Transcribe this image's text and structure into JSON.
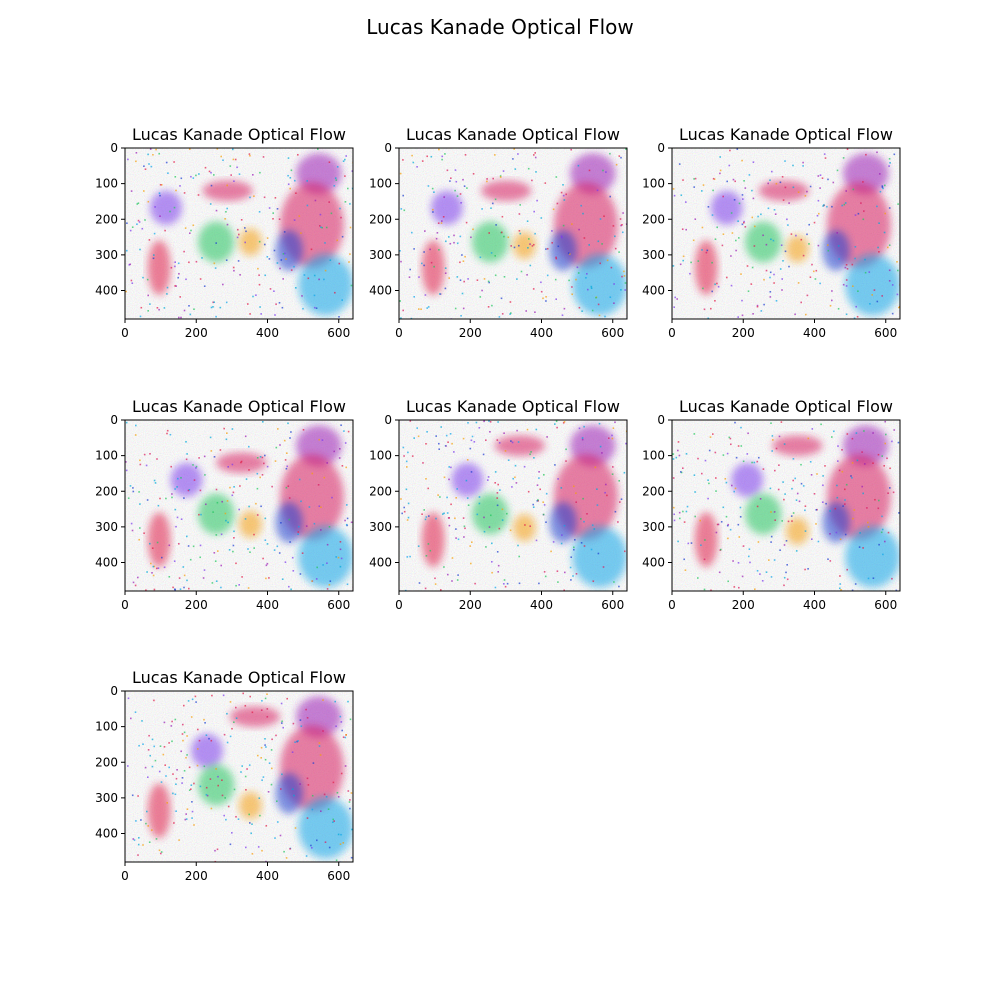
{
  "figure": {
    "title": "Lucas Kanade Optical Flow"
  },
  "chart_data": [
    {
      "type": "heatmap",
      "title": "Lucas Kanade Optical Flow",
      "xlim": [
        0,
        640
      ],
      "ylim": [
        480,
        0
      ],
      "xticks": [
        0,
        200,
        400,
        600
      ],
      "yticks": [
        0,
        100,
        200,
        300,
        400
      ],
      "xtick_labels": [
        "0",
        "200",
        "400",
        "600"
      ],
      "ytick_labels": [
        "0",
        "100",
        "200",
        "300",
        "400"
      ],
      "grid": false
    },
    {
      "type": "heatmap",
      "title": "Lucas Kanade Optical Flow",
      "xlim": [
        0,
        640
      ],
      "ylim": [
        480,
        0
      ],
      "xticks": [
        0,
        200,
        400,
        600
      ],
      "yticks": [
        0,
        100,
        200,
        300,
        400
      ],
      "xtick_labels": [
        "0",
        "200",
        "400",
        "600"
      ],
      "ytick_labels": [
        "0",
        "100",
        "200",
        "300",
        "400"
      ],
      "grid": false
    },
    {
      "type": "heatmap",
      "title": "Lucas Kanade Optical Flow",
      "xlim": [
        0,
        640
      ],
      "ylim": [
        480,
        0
      ],
      "xticks": [
        0,
        200,
        400,
        600
      ],
      "yticks": [
        0,
        100,
        200,
        300,
        400
      ],
      "xtick_labels": [
        "0",
        "200",
        "400",
        "600"
      ],
      "ytick_labels": [
        "0",
        "100",
        "200",
        "300",
        "400"
      ],
      "grid": false
    },
    {
      "type": "heatmap",
      "title": "Lucas Kanade Optical Flow",
      "xlim": [
        0,
        640
      ],
      "ylim": [
        480,
        0
      ],
      "xticks": [
        0,
        200,
        400,
        600
      ],
      "yticks": [
        0,
        100,
        200,
        300,
        400
      ],
      "xtick_labels": [
        "0",
        "200",
        "400",
        "600"
      ],
      "ytick_labels": [
        "0",
        "100",
        "200",
        "300",
        "400"
      ],
      "grid": false
    },
    {
      "type": "heatmap",
      "title": "Lucas Kanade Optical Flow",
      "xlim": [
        0,
        640
      ],
      "ylim": [
        480,
        0
      ],
      "xticks": [
        0,
        200,
        400,
        600
      ],
      "yticks": [
        0,
        100,
        200,
        300,
        400
      ],
      "xtick_labels": [
        "0",
        "200",
        "400",
        "600"
      ],
      "ytick_labels": [
        "0",
        "100",
        "200",
        "300",
        "400"
      ],
      "grid": false
    },
    {
      "type": "heatmap",
      "title": "Lucas Kanade Optical Flow",
      "xlim": [
        0,
        640
      ],
      "ylim": [
        480,
        0
      ],
      "xticks": [
        0,
        200,
        400,
        600
      ],
      "yticks": [
        0,
        100,
        200,
        300,
        400
      ],
      "xtick_labels": [
        "0",
        "200",
        "400",
        "600"
      ],
      "ytick_labels": [
        "0",
        "100",
        "200",
        "300",
        "400"
      ],
      "grid": false
    },
    {
      "type": "heatmap",
      "title": "Lucas Kanade Optical Flow",
      "xlim": [
        0,
        640
      ],
      "ylim": [
        480,
        0
      ],
      "xticks": [
        0,
        200,
        400,
        600
      ],
      "yticks": [
        0,
        100,
        200,
        300,
        400
      ],
      "xtick_labels": [
        "0",
        "200",
        "400",
        "600"
      ],
      "ytick_labels": [
        "0",
        "100",
        "200",
        "300",
        "400"
      ],
      "grid": false
    }
  ]
}
